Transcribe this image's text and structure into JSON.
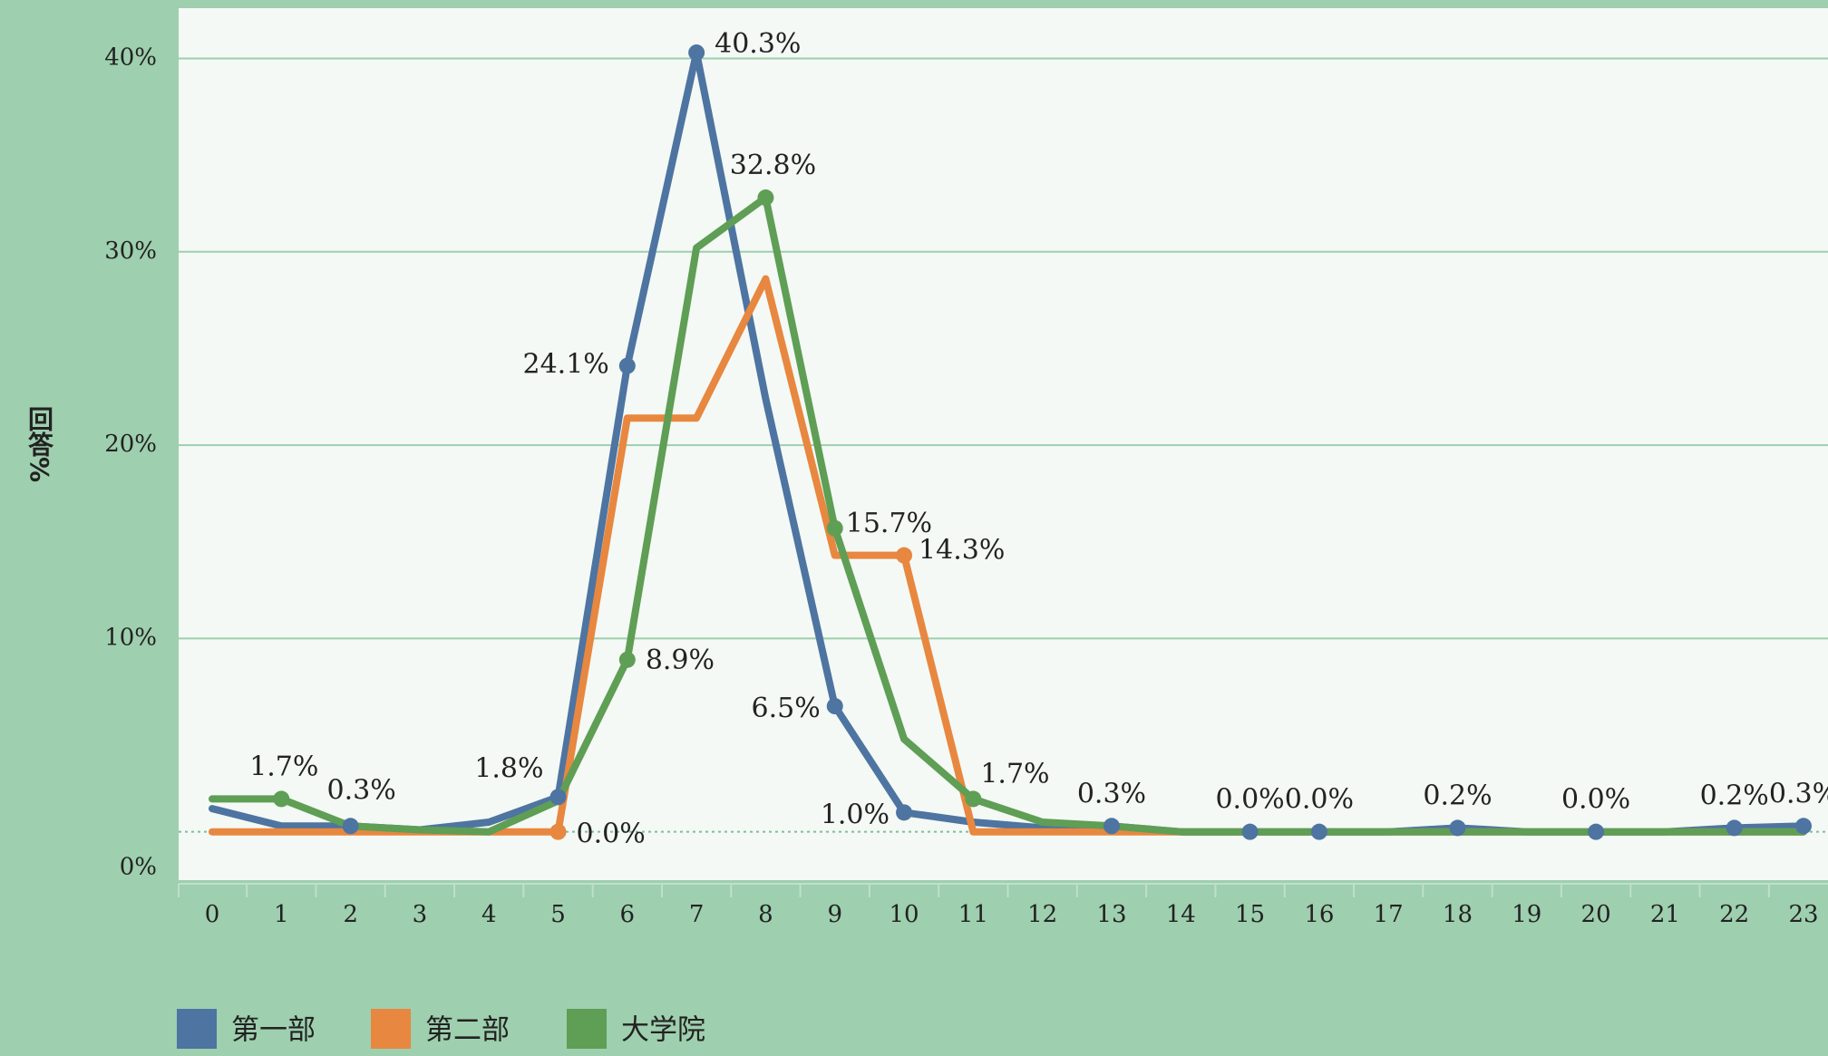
{
  "chart_data": {
    "type": "line",
    "y_label": "回答%",
    "categories": [
      "0",
      "1",
      "2",
      "3",
      "4",
      "5",
      "6",
      "7",
      "8",
      "9",
      "10",
      "11",
      "12",
      "13",
      "14",
      "15",
      "16",
      "17",
      "18",
      "19",
      "20",
      "21",
      "22",
      "23"
    ],
    "ylim": [
      -2.5,
      42.6
    ],
    "yticks": [
      {
        "value": 0,
        "label": "0%"
      },
      {
        "value": 10,
        "label": "10%"
      },
      {
        "value": 20,
        "label": "20%"
      },
      {
        "value": 30,
        "label": "30%"
      },
      {
        "value": 40,
        "label": "40%"
      }
    ],
    "grid": true,
    "legend": "bottom",
    "series": [
      {
        "name": "第一部",
        "color": "#4e74a1",
        "values": [
          1.2,
          0.3,
          0.3,
          0.1,
          0.5,
          1.8,
          24.1,
          40.3,
          22.4,
          6.5,
          1.0,
          0.5,
          0.2,
          0.3,
          0.0,
          0.0,
          0.0,
          0.0,
          0.2,
          0.0,
          0.0,
          0.0,
          0.2,
          0.3
        ],
        "value_labels": [
          null,
          null,
          "0.3%",
          null,
          null,
          "1.8%",
          "24.1%",
          "40.3%",
          null,
          "6.5%",
          "1.0%",
          null,
          null,
          "0.3%",
          null,
          "0.0%",
          "0.0%",
          null,
          "0.2%",
          null,
          "0.0%",
          null,
          "0.2%",
          "0.3%"
        ]
      },
      {
        "name": "第二部",
        "color": "#e8873f",
        "values": [
          0.0,
          0.0,
          0.0,
          0.0,
          0.0,
          0.0,
          21.4,
          21.4,
          28.6,
          14.3,
          14.3,
          0.0,
          0.0,
          0.0,
          0.0,
          0.0,
          0.0,
          0.0,
          0.0,
          0.0,
          0.0,
          0.0,
          0.0,
          0.0
        ],
        "value_labels": [
          null,
          null,
          null,
          null,
          null,
          "0.0%",
          null,
          null,
          null,
          null,
          "14.3%",
          null,
          null,
          null,
          null,
          null,
          null,
          null,
          null,
          null,
          null,
          null,
          null,
          null
        ]
      },
      {
        "name": "大学院",
        "color": "#5f9e55",
        "values": [
          1.7,
          1.7,
          0.3,
          0.1,
          0.0,
          1.6,
          8.9,
          30.2,
          32.8,
          15.7,
          4.8,
          1.7,
          0.5,
          0.3,
          0.0,
          0.0,
          0.0,
          0.0,
          0.0,
          0.0,
          0.0,
          0.0,
          0.0,
          0.0
        ],
        "value_labels": [
          null,
          "1.7%",
          null,
          null,
          null,
          null,
          "8.9%",
          null,
          "32.8%",
          "15.7%",
          null,
          "1.7%",
          null,
          null,
          null,
          null,
          null,
          null,
          null,
          null,
          null,
          null,
          null,
          null
        ]
      }
    ]
  }
}
